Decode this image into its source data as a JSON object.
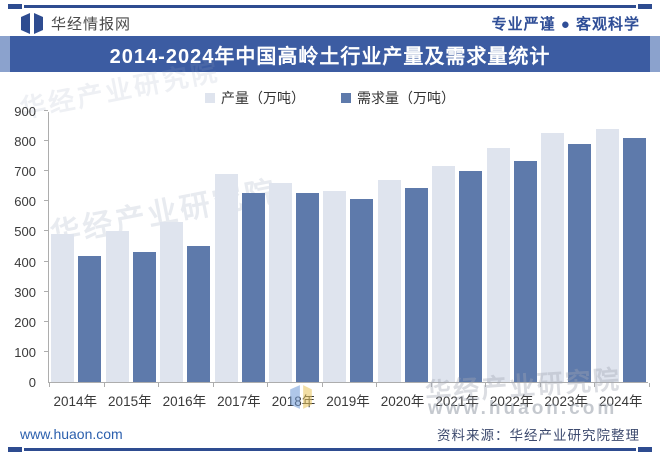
{
  "header": {
    "brand": "华经情报网",
    "slogan": "专业严谨 ● 客观科学"
  },
  "title": "2014-2024年中国高岭土行业产量及需求量统计",
  "legend": [
    {
      "label": "产量（万吨）"
    },
    {
      "label": "需求量（万吨）"
    }
  ],
  "chart_data": {
    "type": "bar",
    "title": "2014-2024年中国高岭土行业产量及需求量统计",
    "categories": [
      "2014年",
      "2015年",
      "2016年",
      "2017年",
      "2018年",
      "2019年",
      "2020年",
      "2021年",
      "2022年",
      "2023年",
      "2024年"
    ],
    "series": [
      {
        "key": "production",
        "name": "产量（万吨）",
        "color": "#dfe4ee",
        "values": [
          490,
          500,
          530,
          690,
          660,
          634,
          672,
          718,
          778,
          827,
          841
        ]
      },
      {
        "key": "demand",
        "name": "需求量（万吨）",
        "color": "#5e7aab",
        "values": [
          418,
          432,
          452,
          628,
          627,
          607,
          645,
          701,
          735,
          792,
          812
        ]
      }
    ],
    "xlabel": "",
    "ylabel": "",
    "ylim": [
      0,
      900
    ],
    "ytick_interval": 100,
    "grid": false,
    "legend_position": "top"
  },
  "watermarks": {
    "text": "华经产业研究院",
    "url": "www.huaon.com"
  },
  "footer": {
    "site": "www.huaon.com",
    "source": "资料来源：华经产业研究院整理"
  },
  "colors": {
    "accent": "#2e4c90",
    "title_bar": "#3c5ca2",
    "production_bar": "#dfe4ee",
    "demand_bar": "#5e7aab"
  }
}
